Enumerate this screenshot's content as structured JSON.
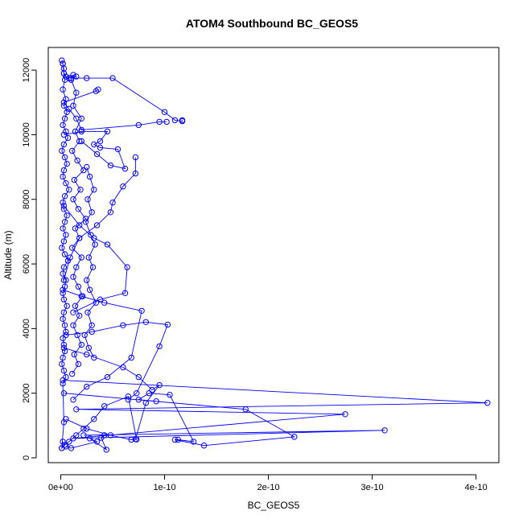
{
  "chart_data": {
    "type": "scatter",
    "mode": "lines+markers",
    "title": "ATOM4 Southbound BC_GEOS5",
    "xlabel": "BC_GEOS5",
    "ylabel": "Altitude (m)",
    "xlim": [
      -1.2e-11,
      4.22e-10
    ],
    "ylim": [
      -150,
      12700
    ],
    "xticks": [
      0,
      1e-10,
      2e-10,
      3e-10,
      4e-10
    ],
    "xtick_labels": [
      "0e+00",
      "1e-10",
      "2e-10",
      "3e-10",
      "4e-10"
    ],
    "yticks": [
      0,
      2000,
      4000,
      6000,
      8000,
      10000,
      12000
    ],
    "ytick_labels": [
      "0",
      "2000",
      "4000",
      "6000",
      "8000",
      "10000",
      "12000"
    ],
    "grid": false,
    "series_color": "#0000ff",
    "series": [
      {
        "x": [
          1e-12,
          2e-12,
          3e-12,
          3e-12,
          5e-12,
          8e-12,
          1.5e-11,
          1.2e-11,
          1e-11,
          2.5e-11,
          5e-11,
          1e-10,
          1.1e-10,
          1.17e-10,
          1.17e-10
        ],
        "y": [
          12300,
          12200,
          12050,
          11900,
          11800,
          11750,
          11800,
          11850,
          11750,
          11750,
          11750,
          10700,
          10450,
          10420,
          10450
        ]
      },
      {
        "x": [
          3.6e-11,
          3.4e-11,
          3e-12,
          8e-12,
          1.5e-11,
          2e-11,
          7.5e-11,
          9.5e-11,
          1.02e-10
        ],
        "y": [
          11400,
          11350,
          11000,
          10800,
          10500,
          10150,
          10300,
          10400,
          10400
        ]
      },
      {
        "x": [
          3e-12,
          2e-11,
          4.5e-11,
          3.8e-11,
          3.2e-11,
          3.8e-11,
          5.5e-11,
          6.2e-11,
          4.8e-11,
          3.5e-11,
          2e-11
        ],
        "y": [
          10000,
          10100,
          10100,
          9800,
          9700,
          9600,
          9550,
          8950,
          9050,
          9400,
          9800
        ]
      },
      {
        "x": [
          7.2e-11,
          7.2e-11,
          6e-11,
          5e-11,
          4.8e-11,
          3.5e-11,
          1.8e-11,
          9e-12,
          3e-12
        ],
        "y": [
          9300,
          8800,
          8400,
          7900,
          7600,
          7200,
          6800,
          6200,
          5500
        ]
      },
      {
        "x": [
          3e-12,
          1.8e-11,
          3.2e-11,
          4.5e-11,
          6.4e-11,
          6.2e-11,
          3.8e-11,
          1.2e-11
        ],
        "y": [
          7800,
          7200,
          6800,
          6600,
          5900,
          5100,
          4900,
          4500
        ]
      },
      {
        "x": [
          2e-12,
          2e-11,
          4.2e-11,
          7.8e-11,
          6.8e-11,
          4.5e-11,
          2.5e-11,
          1.2e-11
        ],
        "y": [
          5200,
          5000,
          4800,
          4550,
          3100,
          2500,
          2200,
          1800
        ]
      },
      {
        "x": [
          5e-12,
          3e-11,
          6e-11,
          8.2e-11,
          1.03e-10,
          9.5e-11,
          7.3e-11,
          6.5e-11
        ],
        "y": [
          3800,
          3900,
          4100,
          4200,
          4120,
          3450,
          2000,
          1800
        ]
      },
      {
        "x": [
          3e-12,
          2.5e-11,
          6e-11,
          7.5e-11,
          8.8e-11,
          9.5e-11,
          8.2e-11,
          7.2e-11
        ],
        "y": [
          3400,
          3200,
          2800,
          2500,
          2100,
          2250,
          1700,
          580
        ]
      },
      {
        "x": [
          2e-12,
          4.11e-10,
          1.5e-11,
          2.74e-10,
          1.2e-11,
          3.12e-10,
          2.2e-11
        ],
        "y": [
          2400,
          1700,
          1500,
          1350,
          600,
          850,
          700
        ]
      },
      {
        "x": [
          3e-12,
          1.78e-10,
          2.25e-10,
          1.38e-10,
          1.1e-10,
          1.13e-10,
          1.28e-10,
          1.05e-10,
          8.5e-11,
          7.5e-11,
          9.2e-11
        ],
        "y": [
          2000,
          1500,
          650,
          380,
          560,
          560,
          500,
          1950,
          2000,
          1800,
          1750
        ]
      },
      {
        "x": [
          5e-12,
          2.5e-11,
          4.8e-11,
          6.8e-11,
          7.3e-11,
          6.5e-11,
          4.2e-11,
          3.2e-11,
          2.2e-11,
          1.5e-11,
          8e-12,
          4e-12,
          1e-12,
          2e-12
        ],
        "y": [
          1200,
          900,
          700,
          560,
          570,
          1900,
          1600,
          1200,
          900,
          700,
          500,
          400,
          300,
          500
        ]
      },
      {
        "x": [
          4.2e-11,
          3.9e-11,
          4.4e-11,
          2.8e-11,
          3.5e-11,
          1e-11,
          5e-12
        ],
        "y": [
          700,
          620,
          250,
          600,
          500,
          300,
          350
        ]
      },
      {
        "x": [
          2e-12,
          3e-12,
          4e-12,
          2e-12,
          5e-12,
          3e-12,
          6e-12,
          4e-12,
          2e-12,
          5e-12,
          7e-12,
          3e-12,
          1e-12,
          4e-12,
          6e-12,
          3e-12,
          2e-12,
          5e-12,
          8e-12,
          4e-12,
          2e-12,
          3e-12,
          6e-12,
          4e-12,
          2e-12,
          5e-12,
          3e-12,
          1e-12,
          4e-12,
          7e-12,
          3e-12,
          2e-12,
          5e-12,
          4e-12,
          2e-12,
          3e-12,
          6e-12,
          3e-12,
          2e-12,
          4e-12,
          5e-12,
          2e-12,
          3e-12,
          4e-12,
          2e-12,
          1e-12,
          3e-12,
          5e-12,
          2e-12,
          3e-12,
          1e-12
        ],
        "y": [
          12200,
          11900,
          11700,
          11400,
          11100,
          10900,
          10700,
          10500,
          10300,
          10100,
          9900,
          9700,
          9500,
          9300,
          9100,
          8900,
          8700,
          8500,
          8300,
          8100,
          7900,
          7700,
          7500,
          7300,
          7100,
          6900,
          6700,
          6500,
          6300,
          6100,
          5900,
          5700,
          5500,
          5300,
          5100,
          4900,
          4700,
          4500,
          4300,
          4100,
          3900,
          3700,
          3500,
          3300,
          3100,
          2900,
          2700,
          2500,
          2300,
          1100,
          300
        ]
      },
      {
        "x": [
          1e-11,
          1.5e-11,
          1.2e-11,
          2e-11,
          1.4e-11,
          1.8e-11,
          1.1e-11,
          1.6e-11,
          2.2e-11,
          1.3e-11,
          1.9e-11,
          1.2e-11,
          1.7e-11,
          2.4e-11,
          1.4e-11,
          1.8e-11,
          1.1e-11,
          2e-11,
          1.5e-11,
          1.2e-11,
          1.7e-11,
          2.1e-11,
          1.4e-11,
          1.8e-11,
          1.2e-11,
          1.6e-11,
          2e-11,
          1.3e-11,
          1.7e-11,
          1.1e-11
        ],
        "y": [
          11700,
          11300,
          10900,
          10500,
          10100,
          9800,
          9500,
          9200,
          8900,
          8600,
          8300,
          8000,
          7700,
          7400,
          7100,
          6800,
          6500,
          6200,
          5900,
          5600,
          5300,
          5000,
          4700,
          4400,
          4100,
          3800,
          3500,
          3200,
          2900,
          2600
        ]
      },
      {
        "x": [
          2.5e-11,
          2.8e-11,
          3.2e-11,
          2.6e-11,
          3e-11,
          2.4e-11,
          2.9e-11,
          3.3e-11,
          2.7e-11,
          3.1e-11,
          2.5e-11,
          2.8e-11,
          3.4e-11,
          2.6e-11,
          3e-11,
          2.3e-11,
          2.7e-11,
          3.2e-11
        ],
        "y": [
          9000,
          8700,
          8300,
          8000,
          7600,
          7300,
          6900,
          6600,
          6200,
          5900,
          5500,
          5200,
          4800,
          4500,
          4100,
          3800,
          3400,
          3100
        ]
      }
    ]
  }
}
